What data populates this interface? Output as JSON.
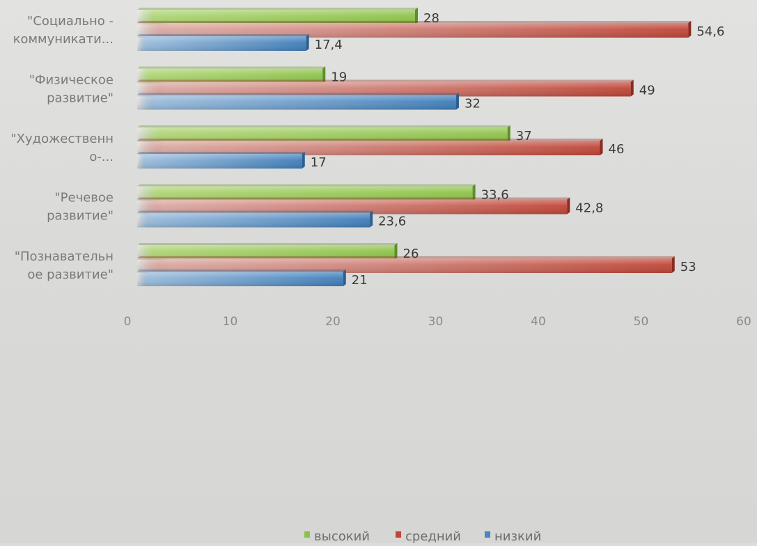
{
  "chart_data": {
    "type": "bar",
    "orientation": "horizontal",
    "title": "",
    "xlabel": "",
    "ylabel": "",
    "xlim": [
      0,
      60
    ],
    "x_ticks": [
      "0",
      "10",
      "20",
      "30",
      "40",
      "50",
      "60"
    ],
    "grid": false,
    "legend_position": "bottom",
    "categories": [
      [
        "\"Социально -",
        "коммуникати..."
      ],
      [
        "\"Физическое",
        "развитие\""
      ],
      [
        "\"Художественн",
        "о-..."
      ],
      [
        "\"Речевое",
        "развитие\""
      ],
      [
        "\"Познавательн",
        "ое развитие\""
      ]
    ],
    "series": [
      {
        "name": "высокий",
        "color": "#8dc24a",
        "values": [
          28,
          19,
          37,
          33.6,
          26
        ],
        "labels": [
          "28",
          "19",
          "37",
          "33,6",
          "26"
        ]
      },
      {
        "name": "средний",
        "color": "#c0463a",
        "values": [
          54.6,
          49,
          46,
          42.8,
          53
        ],
        "labels": [
          "54,6",
          "49",
          "46",
          "42,8",
          "53"
        ]
      },
      {
        "name": "низкий",
        "color": "#4a86c0",
        "values": [
          17.4,
          32,
          17,
          23.6,
          21
        ],
        "labels": [
          "17,4",
          "32",
          "17",
          "23,6",
          "21"
        ]
      }
    ]
  }
}
